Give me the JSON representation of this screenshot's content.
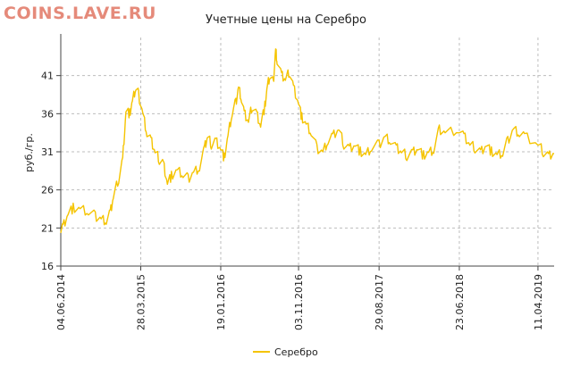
{
  "watermark": "COINS.LAVE.RU",
  "chart_data": {
    "type": "line",
    "title": "Учетные цены на Серебро",
    "ylabel": "руб./гр.",
    "xlabel": "",
    "ylim": [
      16,
      46
    ],
    "y_ticks": [
      "16",
      "21",
      "26",
      "31",
      "36",
      "41"
    ],
    "x_ticks": [
      "04.06.2014",
      "28.03.2015",
      "19.01.2016",
      "03.11.2016",
      "29.08.2017",
      "23.06.2018",
      "11.04.2019"
    ],
    "grid": true,
    "legend_position": "bottom-center",
    "series": [
      {
        "name": "Серебро",
        "color": "#f5c400",
        "points": [
          [
            "04.06.2014",
            21.0
          ],
          [
            "12.06.2014",
            21.2
          ],
          [
            "01.07.2014",
            23.0
          ],
          [
            "20.07.2014",
            23.6
          ],
          [
            "15.08.2014",
            23.4
          ],
          [
            "15.09.2014",
            23.1
          ],
          [
            "10.10.2014",
            22.6
          ],
          [
            "01.11.2014",
            22.2
          ],
          [
            "20.11.2014",
            22.0
          ],
          [
            "05.12.2014",
            23.0
          ],
          [
            "16.12.2014",
            25.0
          ],
          [
            "05.01.2015",
            27.5
          ],
          [
            "20.01.2015",
            30.0
          ],
          [
            "01.02.2015",
            36.5
          ],
          [
            "15.02.2015",
            36.0
          ],
          [
            "25.02.2015",
            37.5
          ],
          [
            "10.03.2015",
            39.5
          ],
          [
            "20.03.2015",
            38.5
          ],
          [
            "05.04.2015",
            36.0
          ],
          [
            "20.04.2015",
            33.5
          ],
          [
            "05.05.2015",
            32.5
          ],
          [
            "20.05.2015",
            31.0
          ],
          [
            "05.06.2015",
            30.0
          ],
          [
            "20.06.2015",
            29.5
          ],
          [
            "05.07.2015",
            27.0
          ],
          [
            "20.07.2015",
            27.8
          ],
          [
            "10.08.2015",
            28.5
          ],
          [
            "01.09.2015",
            28.0
          ],
          [
            "20.09.2015",
            27.5
          ],
          [
            "10.10.2015",
            28.3
          ],
          [
            "01.11.2015",
            29.0
          ],
          [
            "20.11.2015",
            31.5
          ],
          [
            "01.12.2015",
            33.0
          ],
          [
            "15.12.2015",
            32.0
          ],
          [
            "01.01.2016",
            32.5
          ],
          [
            "19.01.2016",
            31.5
          ],
          [
            "01.02.2016",
            30.2
          ],
          [
            "15.02.2016",
            33.0
          ],
          [
            "01.03.2016",
            36.0
          ],
          [
            "15.03.2016",
            37.5
          ],
          [
            "25.03.2016",
            39.5
          ],
          [
            "05.04.2016",
            38.0
          ],
          [
            "15.04.2016",
            36.0
          ],
          [
            "01.05.2016",
            35.0
          ],
          [
            "15.05.2016",
            37.0
          ],
          [
            "01.06.2016",
            36.0
          ],
          [
            "15.06.2016",
            34.5
          ],
          [
            "01.07.2016",
            37.0
          ],
          [
            "10.07.2016",
            39.5
          ],
          [
            "20.07.2016",
            41.0
          ],
          [
            "01.08.2016",
            40.0
          ],
          [
            "10.08.2016",
            44.5
          ],
          [
            "15.08.2016",
            43.0
          ],
          [
            "01.09.2016",
            41.0
          ],
          [
            "15.09.2016",
            40.5
          ],
          [
            "01.10.2016",
            41.5
          ],
          [
            "15.10.2016",
            39.5
          ],
          [
            "03.11.2016",
            37.5
          ],
          [
            "15.11.2016",
            35.5
          ],
          [
            "01.12.2016",
            34.5
          ],
          [
            "20.12.2016",
            33.5
          ],
          [
            "10.01.2017",
            31.5
          ],
          [
            "01.02.2017",
            31.0
          ],
          [
            "20.02.2017",
            32.5
          ],
          [
            "10.03.2017",
            33.0
          ],
          [
            "01.04.2017",
            34.0
          ],
          [
            "20.04.2017",
            32.0
          ],
          [
            "10.05.2017",
            31.5
          ],
          [
            "01.06.2017",
            32.0
          ],
          [
            "20.06.2017",
            31.0
          ],
          [
            "10.07.2017",
            30.5
          ],
          [
            "01.08.2017",
            31.5
          ],
          [
            "29.08.2017",
            32.0
          ],
          [
            "20.09.2017",
            33.0
          ],
          [
            "10.10.2017",
            32.5
          ],
          [
            "01.11.2017",
            31.5
          ],
          [
            "20.11.2017",
            31.0
          ],
          [
            "10.12.2017",
            30.5
          ],
          [
            "01.01.2018",
            31.0
          ],
          [
            "20.01.2018",
            31.5
          ],
          [
            "10.02.2018",
            30.5
          ],
          [
            "01.03.2018",
            30.8
          ],
          [
            "20.03.2018",
            31.2
          ],
          [
            "10.04.2018",
            34.0
          ],
          [
            "01.05.2018",
            33.5
          ],
          [
            "23.06.2018",
            34.0
          ],
          [
            "10.07.2018",
            33.0
          ],
          [
            "01.08.2018",
            32.0
          ],
          [
            "20.08.2018",
            31.5
          ],
          [
            "10.09.2018",
            31.0
          ],
          [
            "01.10.2018",
            32.0
          ],
          [
            "20.10.2018",
            31.0
          ],
          [
            "10.11.2018",
            30.5
          ],
          [
            "01.12.2018",
            30.8
          ],
          [
            "20.12.2018",
            32.5
          ],
          [
            "10.01.2019",
            34.0
          ],
          [
            "01.02.2019",
            33.5
          ],
          [
            "20.02.2019",
            33.0
          ],
          [
            "11.04.2019",
            32.0
          ],
          [
            "01.05.2019",
            31.0
          ],
          [
            "20.05.2019",
            30.5
          ],
          [
            "10.06.2019",
            31.0
          ]
        ]
      }
    ]
  }
}
